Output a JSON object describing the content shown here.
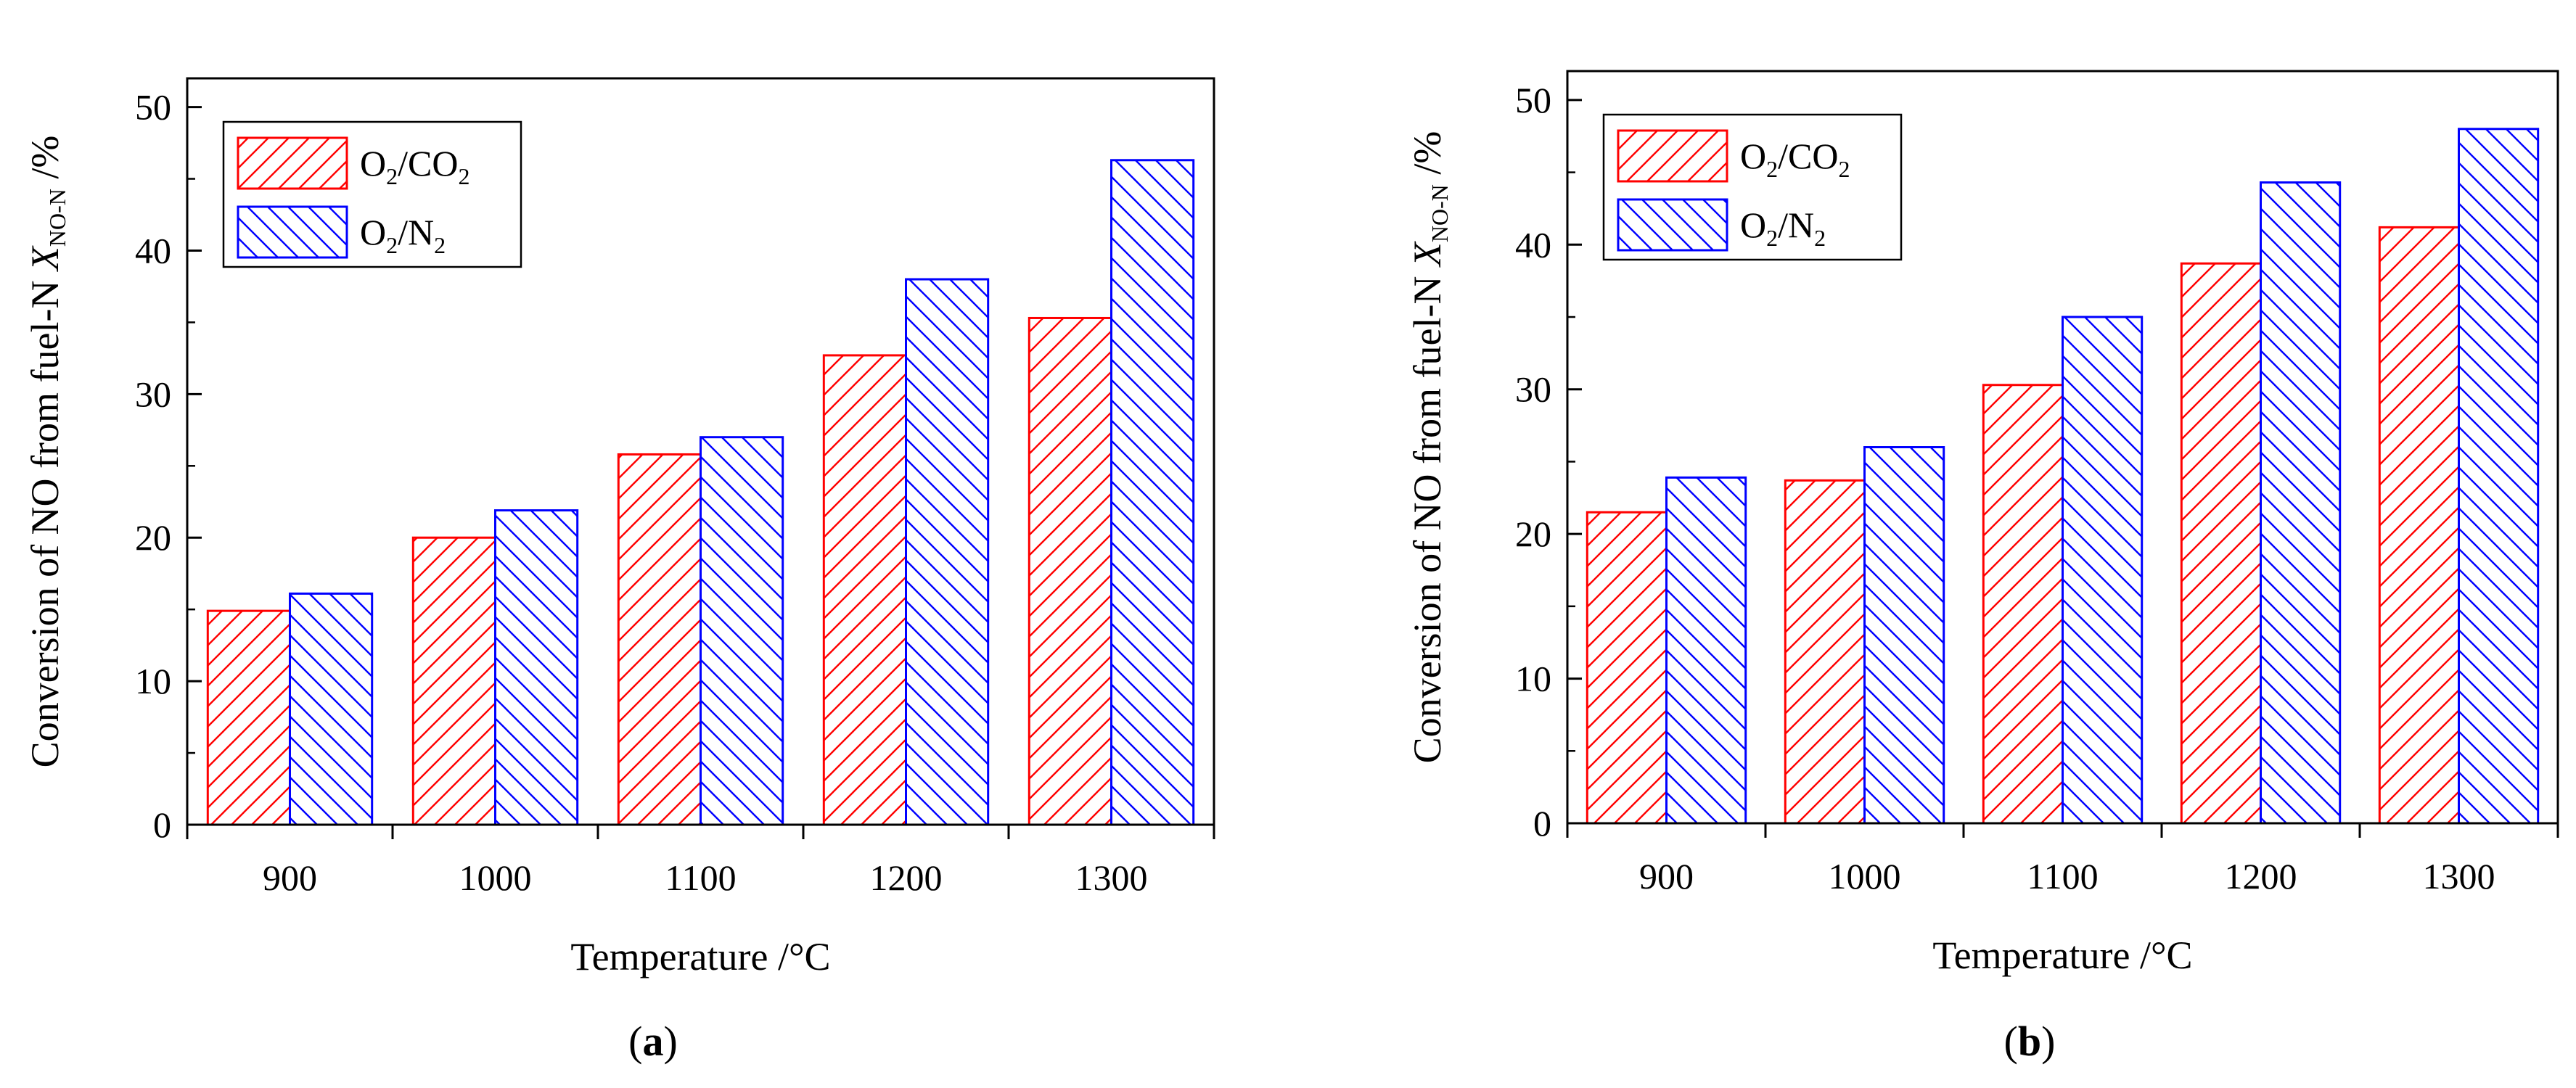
{
  "chart_data": [
    {
      "type": "bar",
      "panel_label": "(a)",
      "categories": [
        "900",
        "1000",
        "1100",
        "1200",
        "1300"
      ],
      "series": [
        {
          "name": "O2/CO2",
          "legend_parts": [
            "O",
            "2",
            "/CO",
            "2"
          ],
          "color": "#ff0000",
          "hatch": "forward",
          "values": [
            14.9,
            20.0,
            25.8,
            32.7,
            35.3
          ]
        },
        {
          "name": "O2/N2",
          "legend_parts": [
            "O",
            "2",
            "/N",
            "2"
          ],
          "color": "#0000ff",
          "hatch": "backward",
          "values": [
            16.1,
            21.9,
            27.0,
            38.0,
            46.3
          ]
        }
      ],
      "ylim": [
        0,
        52
      ],
      "yticks": [
        0,
        10,
        20,
        30,
        40,
        50
      ],
      "xlabel": "Temperature /°C",
      "ylabel_main": "Conversion  of NO from fuel-N  ",
      "ylabel_var": "X",
      "ylabel_sub": "NO-N",
      "ylabel_unit": " /%",
      "legend_position": "top-left"
    },
    {
      "type": "bar",
      "panel_label": "(b)",
      "categories": [
        "900",
        "1000",
        "1100",
        "1200",
        "1300"
      ],
      "series": [
        {
          "name": "O2/CO2",
          "legend_parts": [
            "O",
            "2",
            "/CO",
            "2"
          ],
          "color": "#ff0000",
          "hatch": "forward",
          "values": [
            21.5,
            23.7,
            30.3,
            38.7,
            41.2
          ]
        },
        {
          "name": "O2/N2",
          "legend_parts": [
            "O",
            "2",
            "/N",
            "2"
          ],
          "color": "#0000ff",
          "hatch": "backward",
          "values": [
            23.9,
            26.0,
            35.0,
            44.3,
            48.0
          ]
        }
      ],
      "ylim": [
        0,
        52
      ],
      "yticks": [
        0,
        10,
        20,
        30,
        40,
        50
      ],
      "xlabel": "Temperature /°C",
      "ylabel_main": "Conversion of NO from fuel-N  ",
      "ylabel_var": "X",
      "ylabel_sub": "NO-N",
      "ylabel_unit": " /%",
      "legend_position": "top-left"
    }
  ]
}
